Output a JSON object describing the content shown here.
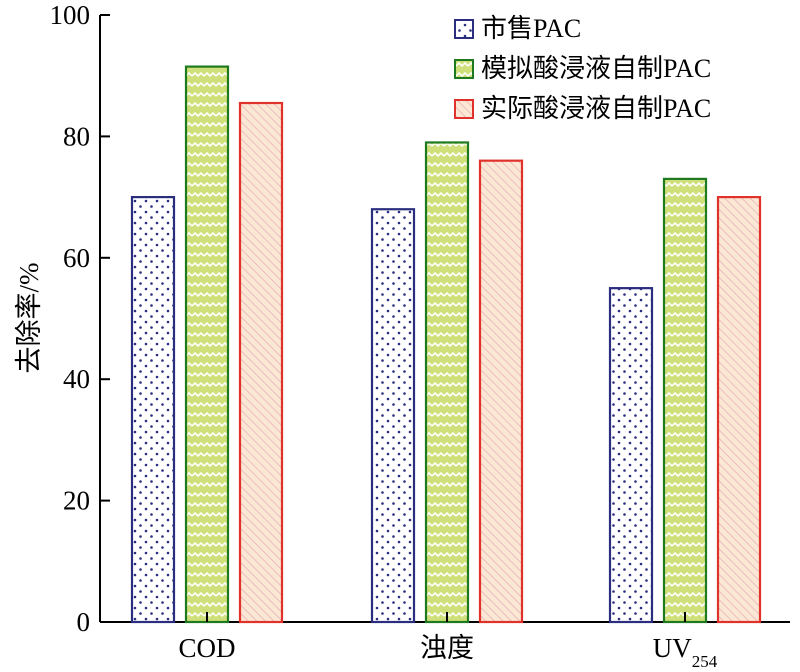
{
  "chart_data": {
    "type": "bar",
    "title": "",
    "xlabel": "",
    "ylabel": "去除率/%",
    "ylim": [
      0,
      100
    ],
    "yticks": [
      0,
      20,
      40,
      60,
      80,
      100
    ],
    "categories": [
      {
        "label": "COD",
        "sub": ""
      },
      {
        "label": "浊度",
        "sub": ""
      },
      {
        "label": "UV",
        "sub": "254"
      }
    ],
    "series": [
      {
        "name": "市售PAC",
        "values": [
          70,
          68,
          55
        ],
        "stroke": "#2b2d7f",
        "pattern": "dots"
      },
      {
        "name": "模拟酸浸液自制PAC",
        "values": [
          91.5,
          79,
          73
        ],
        "stroke": "#1f7a1f",
        "pattern": "zigzag"
      },
      {
        "name": "实际酸浸液自制PAC",
        "values": [
          85.5,
          76,
          70
        ],
        "stroke": "#e0322b",
        "pattern": "hatch"
      }
    ],
    "legend_position": "top-right",
    "grid": false,
    "colors": {
      "dots_fill": "#ffffff",
      "dots_dot": "#2b2d7f",
      "zigzag_fill": "#cfe07a",
      "zigzag_line": "#ffffff",
      "hatch_fill": "#fbe8d4",
      "hatch_line": "#e8a9b8"
    }
  }
}
